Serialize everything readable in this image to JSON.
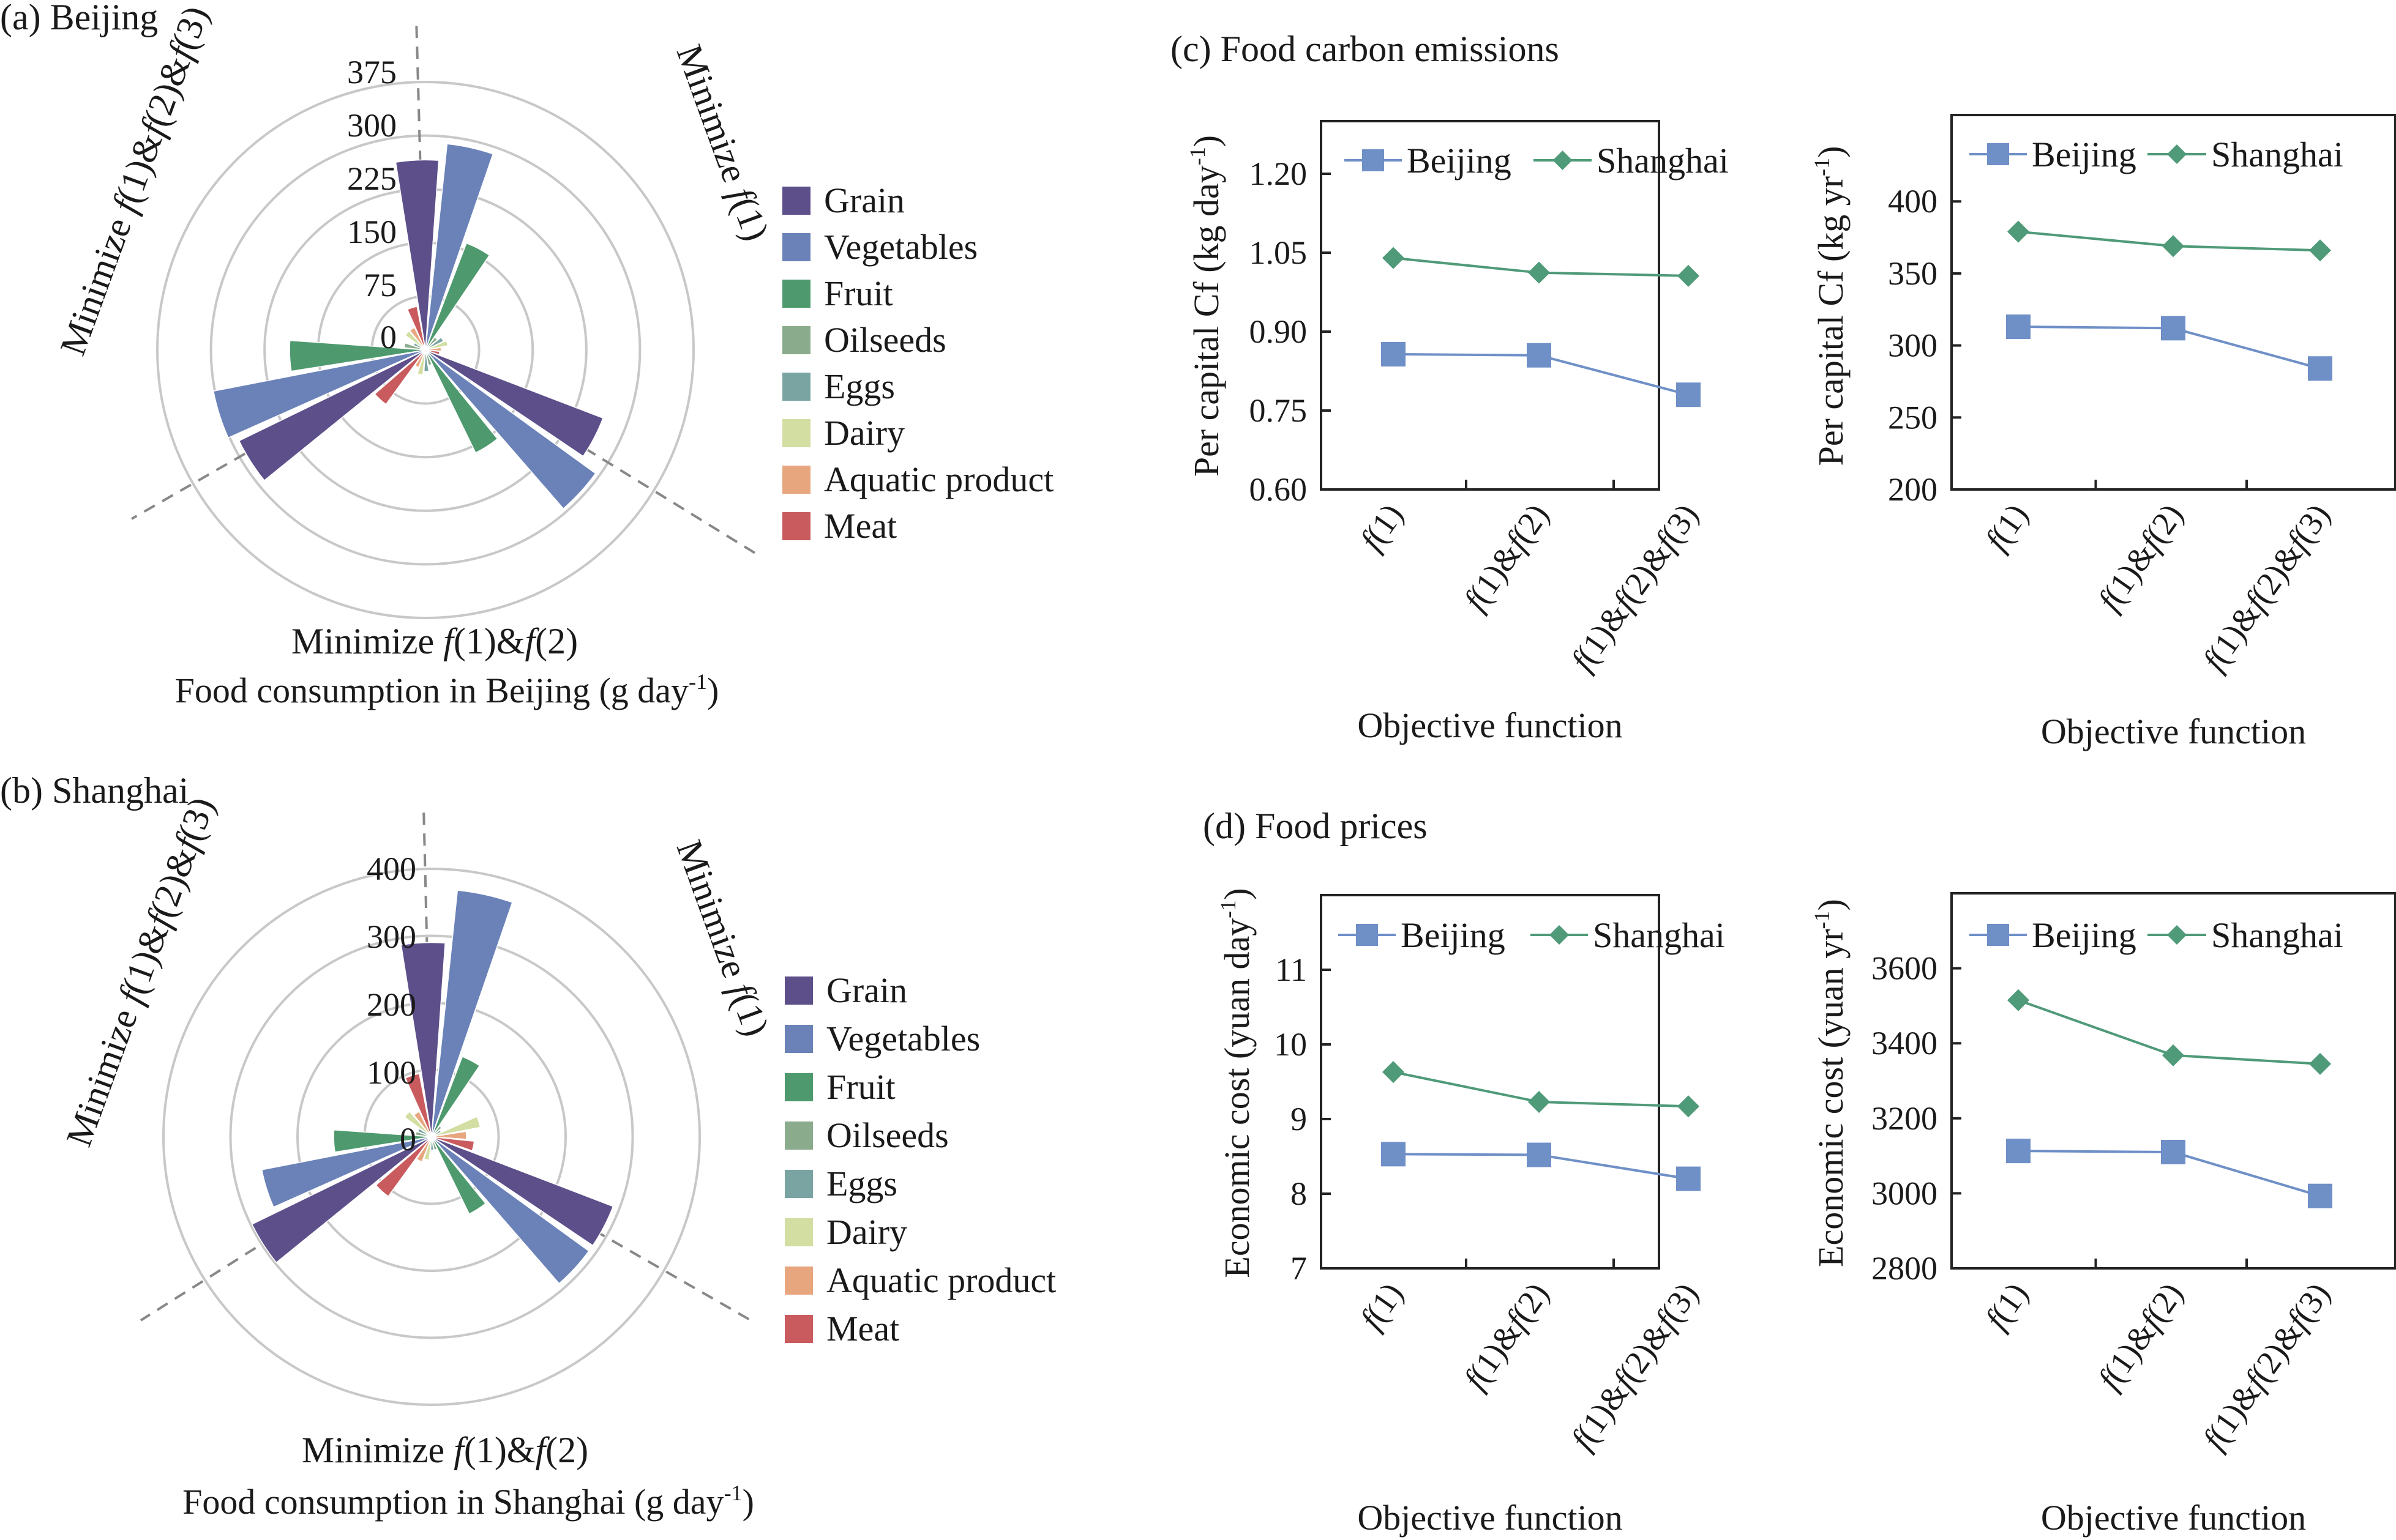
{
  "colors": {
    "Grain": "#5c4f8a",
    "Vegetables": "#6a82b8",
    "Fruit": "#4e9a6e",
    "Oilseeds": "#8aab8c",
    "Eggs": "#7aa4a2",
    "Dairy": "#d2dea2",
    "Aquatic product": "#e8a67e",
    "Meat": "#c95b5f",
    "Beijing": "#6f8fc7",
    "Shanghai": "#4f9a78"
  },
  "legend_items": [
    "Grain",
    "Vegetables",
    "Fruit",
    "Oilseeds",
    "Eggs",
    "Dairy",
    "Aquatic product",
    "Meat"
  ],
  "chart_data": [
    {
      "type": "polar-bar",
      "panel_title": "(a)  Beijing",
      "xlabel": "Food consumption in Beijing (g day",
      "xlabel_sup": "-1",
      "xlabel_end": ")",
      "radial_ticks": [
        "0",
        "75",
        "150",
        "225",
        "300",
        "375"
      ],
      "rmax": 375,
      "sector_labels": [
        "Minimize f(1)",
        "Minimize f(1)&f(2)",
        "Minimize f(1)&f(2)&f(3)"
      ],
      "categories": [
        "Grain",
        "Vegetables",
        "Fruit",
        "Oilseeds",
        "Eggs",
        "Dairy",
        "Aquatic product",
        "Meat"
      ],
      "series": [
        {
          "name": "Minimize f(1)",
          "values": [
            266,
            290,
            160,
            22,
            28,
            32,
            22,
            20
          ]
        },
        {
          "name": "Minimize f(1)&f(2)",
          "values": [
            266,
            294,
            160,
            22,
            30,
            35,
            26,
            94
          ]
        },
        {
          "name": "Minimize f(1)&f(2)&f(3)",
          "values": [
            290,
            302,
            190,
            30,
            18,
            35,
            35,
            62
          ]
        }
      ]
    },
    {
      "type": "polar-bar",
      "panel_title": "(b)  Shanghai",
      "xlabel": "Food consumption in Shanghai (g day",
      "xlabel_sup": "-1",
      "xlabel_end": ")",
      "radial_ticks": [
        "0",
        "100",
        "200",
        "300",
        "400"
      ],
      "rmax": 400,
      "sector_labels": [
        "Minimize f(1)",
        "Minimize f(1)&f(2)",
        "Minimize f(1)&f(2)&f(3)"
      ],
      "categories": [
        "Grain",
        "Vegetables",
        "Fruit",
        "Oilseeds",
        "Eggs",
        "Dairy",
        "Aquatic product",
        "Meat"
      ],
      "series": [
        {
          "name": "Minimize f(1)",
          "values": [
            290,
            370,
            128,
            20,
            16,
            74,
            52,
            64
          ]
        },
        {
          "name": "Minimize f(1)&f(2)",
          "values": [
            290,
            290,
            128,
            20,
            20,
            35,
            40,
            110
          ]
        },
        {
          "name": "Minimize f(1)&f(2)&f(3)",
          "values": [
            298,
            258,
            146,
            24,
            22,
            50,
            42,
            96
          ]
        }
      ]
    },
    {
      "type": "line",
      "group_title": "(c)  Food carbon emissions",
      "ylabel": "Per capital Cf (kg day",
      "ylabel_sup": "-1",
      "ylabel_end": ")",
      "xlabel": "Objective function",
      "categories": [
        "f(1)",
        "f(1)&f(2)",
        "f(1)&f(2)&f(3)"
      ],
      "yticks": [
        0.6,
        0.75,
        0.9,
        1.05,
        1.2
      ],
      "ytick_labels": [
        "0.60",
        "0.75",
        "0.90",
        "1.05",
        "1.20"
      ],
      "ylim": [
        0.6,
        1.3
      ],
      "series": [
        {
          "name": "Beijing",
          "values": [
            0.857,
            0.855,
            0.78
          ]
        },
        {
          "name": "Shanghai",
          "values": [
            1.04,
            1.012,
            1.006
          ]
        }
      ]
    },
    {
      "type": "line",
      "ylabel": "Per capital Cf (kg yr",
      "ylabel_sup": "-1",
      "ylabel_end": ")",
      "xlabel": "Objective function",
      "categories": [
        "f(1)",
        "f(1)&f(2)",
        "f(1)&f(2)&f(3)"
      ],
      "yticks": [
        200,
        250,
        300,
        350,
        400
      ],
      "ytick_labels": [
        "200",
        "250",
        "300",
        "350",
        "400"
      ],
      "ylim": [
        200,
        460
      ],
      "series": [
        {
          "name": "Beijing",
          "values": [
            313,
            312,
            284
          ]
        },
        {
          "name": "Shanghai",
          "values": [
            379,
            369,
            366
          ]
        }
      ]
    },
    {
      "type": "line",
      "group_title": "(d)  Food prices",
      "ylabel": "Economic cost (yuan day",
      "ylabel_sup": "-1",
      "ylabel_end": ")",
      "xlabel": "Objective function",
      "categories": [
        "f(1)",
        "f(1)&f(2)",
        "f(1)&f(2)&f(3)"
      ],
      "yticks": [
        7,
        8,
        9,
        10,
        11
      ],
      "ytick_labels": [
        "7",
        "8",
        "9",
        "10",
        "11"
      ],
      "ylim": [
        7,
        12
      ],
      "series": [
        {
          "name": "Beijing",
          "values": [
            8.53,
            8.52,
            8.2
          ]
        },
        {
          "name": "Shanghai",
          "values": [
            9.63,
            9.23,
            9.17
          ]
        }
      ]
    },
    {
      "type": "line",
      "ylabel": "Economic cost (yuan yr",
      "ylabel_sup": "-1",
      "ylabel_end": ")",
      "xlabel": "Objective function",
      "categories": [
        "f(1)",
        "f(1)&f(2)",
        "f(1)&f(2)&f(3)"
      ],
      "yticks": [
        2800,
        3000,
        3200,
        3400,
        3600
      ],
      "ytick_labels": [
        "2800",
        "3000",
        "3200",
        "3400",
        "3600"
      ],
      "ylim": [
        2800,
        3800
      ],
      "series": [
        {
          "name": "Beijing",
          "values": [
            3113,
            3110,
            2993
          ]
        },
        {
          "name": "Shanghai",
          "values": [
            3515,
            3368,
            3345
          ]
        }
      ]
    }
  ]
}
